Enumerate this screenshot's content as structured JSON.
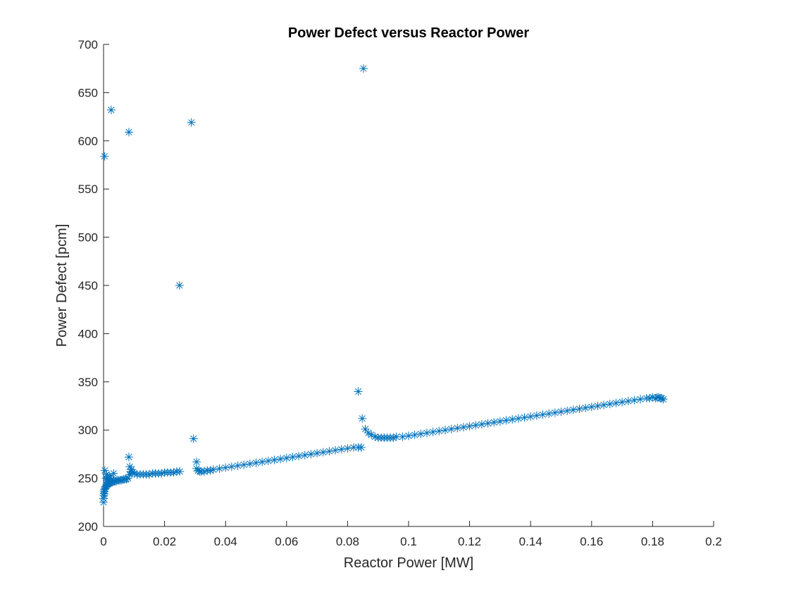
{
  "chart_data": {
    "type": "scatter",
    "title": "Power Defect versus Reactor Power",
    "xlabel": "Reactor Power [MW]",
    "ylabel": "Power Defect [pcm]",
    "xlim": [
      0,
      0.2
    ],
    "ylim": [
      200,
      700
    ],
    "xticks": [
      0,
      0.02,
      0.04,
      0.06,
      0.08,
      0.1,
      0.12,
      0.14,
      0.16,
      0.18,
      0.2
    ],
    "xtick_labels": [
      "0",
      "0.02",
      "0.04",
      "0.06",
      "0.08",
      "0.1",
      "0.12",
      "0.14",
      "0.16",
      "0.18",
      "0.2"
    ],
    "yticks": [
      200,
      250,
      300,
      350,
      400,
      450,
      500,
      550,
      600,
      650,
      700
    ],
    "ytick_labels": [
      "200",
      "250",
      "300",
      "350",
      "400",
      "450",
      "500",
      "550",
      "600",
      "650",
      "700"
    ],
    "grid": false,
    "legend": "none",
    "marker": "asterisk",
    "color": "#0072BD",
    "series": [
      {
        "x": [
          0.0001,
          0.0003,
          0.0005,
          0.0007,
          0.0009,
          0.0011,
          0.0013,
          0.0015,
          0.0018,
          0.0021,
          0.0024,
          0.0027,
          0.003,
          0.0034,
          0.0038,
          0.0042,
          0.0046,
          0.005,
          0.0055,
          0.006,
          0.0065,
          0.007,
          0.0075,
          0.008,
          0.0085,
          0.009,
          0.0095,
          0.01,
          0.011,
          0.012,
          0.013,
          0.014,
          0.015,
          0.016,
          0.017,
          0.018,
          0.019,
          0.02,
          0.021,
          0.022,
          0.023,
          0.024,
          0.025,
          0.0305,
          0.031,
          0.0315,
          0.032,
          0.033,
          0.034,
          0.035,
          0.036,
          0.038,
          0.04,
          0.042,
          0.044,
          0.046,
          0.048,
          0.05,
          0.052,
          0.054,
          0.056,
          0.058,
          0.06,
          0.062,
          0.064,
          0.066,
          0.068,
          0.07,
          0.072,
          0.074,
          0.076,
          0.078,
          0.08,
          0.082,
          0.0835,
          0.0845,
          0.0858,
          0.0868,
          0.0878,
          0.089,
          0.09,
          0.091,
          0.092,
          0.093,
          0.094,
          0.095,
          0.096,
          0.098,
          0.1,
          0.102,
          0.104,
          0.106,
          0.108,
          0.11,
          0.112,
          0.114,
          0.116,
          0.118,
          0.12,
          0.122,
          0.124,
          0.126,
          0.128,
          0.13,
          0.132,
          0.134,
          0.136,
          0.138,
          0.14,
          0.142,
          0.144,
          0.146,
          0.148,
          0.15,
          0.152,
          0.154,
          0.156,
          0.158,
          0.16,
          0.162,
          0.164,
          0.166,
          0.168,
          0.17,
          0.172,
          0.174,
          0.176,
          0.178,
          0.179,
          0.18,
          0.181,
          0.1815,
          0.182,
          0.1825,
          0.183,
          0.1835,
          0.0,
          0.0,
          0.0002,
          0.0002,
          0.0004,
          0.0008,
          0.001,
          0.0012,
          0.0014,
          0.0016,
          0.0019,
          0.0022,
          0.0026,
          0.0033,
          0.0083,
          0.0086,
          0.0092,
          0.0003,
          0.0025,
          0.0083,
          0.0249,
          0.0288,
          0.0295,
          0.0305,
          0.0835,
          0.0848,
          0.0852
        ],
        "y": [
          232,
          236,
          239,
          241,
          242,
          243,
          244,
          244,
          245,
          245,
          246,
          246,
          246,
          247,
          247,
          247,
          248,
          248,
          248,
          248,
          249,
          249,
          249,
          250,
          254,
          257,
          256,
          255,
          254,
          254,
          254,
          254,
          254,
          255,
          255,
          255,
          255,
          256,
          256,
          256,
          256,
          257,
          257,
          260,
          258,
          257,
          257,
          257,
          258,
          258,
          259,
          260,
          261,
          262,
          263,
          264,
          265,
          266,
          267,
          268,
          269,
          270,
          271,
          272,
          273,
          274,
          275,
          276,
          277,
          278,
          279,
          280,
          281,
          282,
          282,
          282,
          301,
          297,
          295,
          293,
          292,
          292,
          292,
          292,
          292,
          292,
          293,
          293,
          294,
          295,
          296,
          297,
          298,
          299,
          300,
          301,
          302,
          303,
          304,
          305,
          306,
          307,
          308,
          309,
          310,
          311,
          312,
          313,
          314,
          315,
          316,
          317,
          318,
          319,
          320,
          321,
          322,
          323,
          324,
          325,
          326,
          327,
          328,
          329,
          330,
          331,
          332,
          333,
          333,
          334,
          333,
          334,
          334,
          333,
          333,
          332,
          225,
          229,
          234,
          238,
          258,
          250,
          254,
          248,
          246,
          250,
          252,
          250,
          249,
          255,
          272,
          262,
          259,
          584,
          632,
          609,
          450,
          619,
          291,
          267,
          340,
          312,
          675
        ]
      }
    ]
  }
}
